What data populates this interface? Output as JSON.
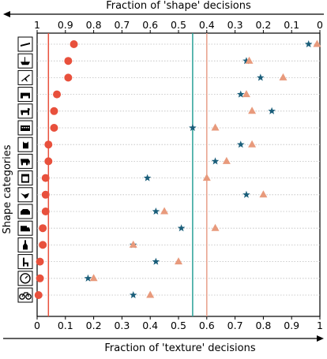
{
  "chart_data": {
    "type": "scatter",
    "title": "",
    "xlabel_top": "Fraction of 'shape' decisions",
    "xlabel_bottom": "Fraction of 'texture' decisions",
    "ylabel": "Shape categories",
    "xlim": [
      0,
      1
    ],
    "x_ticks_bottom": [
      "0",
      "0.1",
      "0.2",
      "0.3",
      "0.4",
      "0.5",
      "0.6",
      "0.7",
      "0.8",
      "0.9",
      "1"
    ],
    "x_ticks_top": [
      "1",
      "0.9",
      "0.8",
      "0.7",
      "0.6",
      "0.5",
      "0.4",
      "0.3",
      "0.2",
      "0.1",
      "0"
    ],
    "categories": [
      "airplane",
      "bear",
      "bicycle",
      "bird",
      "boat",
      "bottle",
      "car",
      "cat",
      "chair",
      "clock",
      "dog",
      "elephant",
      "keyboard",
      "knife",
      "oven",
      "truck"
    ],
    "category_icons": [
      "knife-icon",
      "boat-icon",
      "airplane-icon",
      "bear-icon",
      "dog-icon",
      "keyboard-icon",
      "cat-icon",
      "elephant-icon",
      "oven-icon",
      "bird-icon",
      "car-icon",
      "truck-icon",
      "bottle-icon",
      "chair-icon",
      "clock-icon",
      "bicycle-icon"
    ],
    "grid": "horizontal dotted",
    "series": [
      {
        "marker": "circle",
        "color": "#e8503c",
        "values": [
          0.13,
          0.11,
          0.11,
          0.07,
          0.06,
          0.06,
          0.04,
          0.04,
          0.03,
          0.03,
          0.03,
          0.02,
          0.02,
          0.01,
          0.01,
          0.005
        ]
      },
      {
        "marker": "star",
        "color": "#1a5e7a",
        "values": [
          0.96,
          0.74,
          0.79,
          0.72,
          0.83,
          0.55,
          0.72,
          0.63,
          0.39,
          0.74,
          0.42,
          0.51,
          0.34,
          0.42,
          0.18,
          0.34
        ]
      },
      {
        "marker": "triangle",
        "color": "#e89a7c",
        "values": [
          0.99,
          0.75,
          0.87,
          0.74,
          0.76,
          0.63,
          0.76,
          0.67,
          0.6,
          0.8,
          0.45,
          0.63,
          0.34,
          0.5,
          0.2,
          0.4
        ]
      }
    ],
    "reference_lines": [
      {
        "value": 0.04,
        "color": "#e8503c"
      },
      {
        "value": 0.55,
        "color": "#2aa198"
      },
      {
        "value": 0.6,
        "color": "#e8a08a"
      }
    ]
  }
}
